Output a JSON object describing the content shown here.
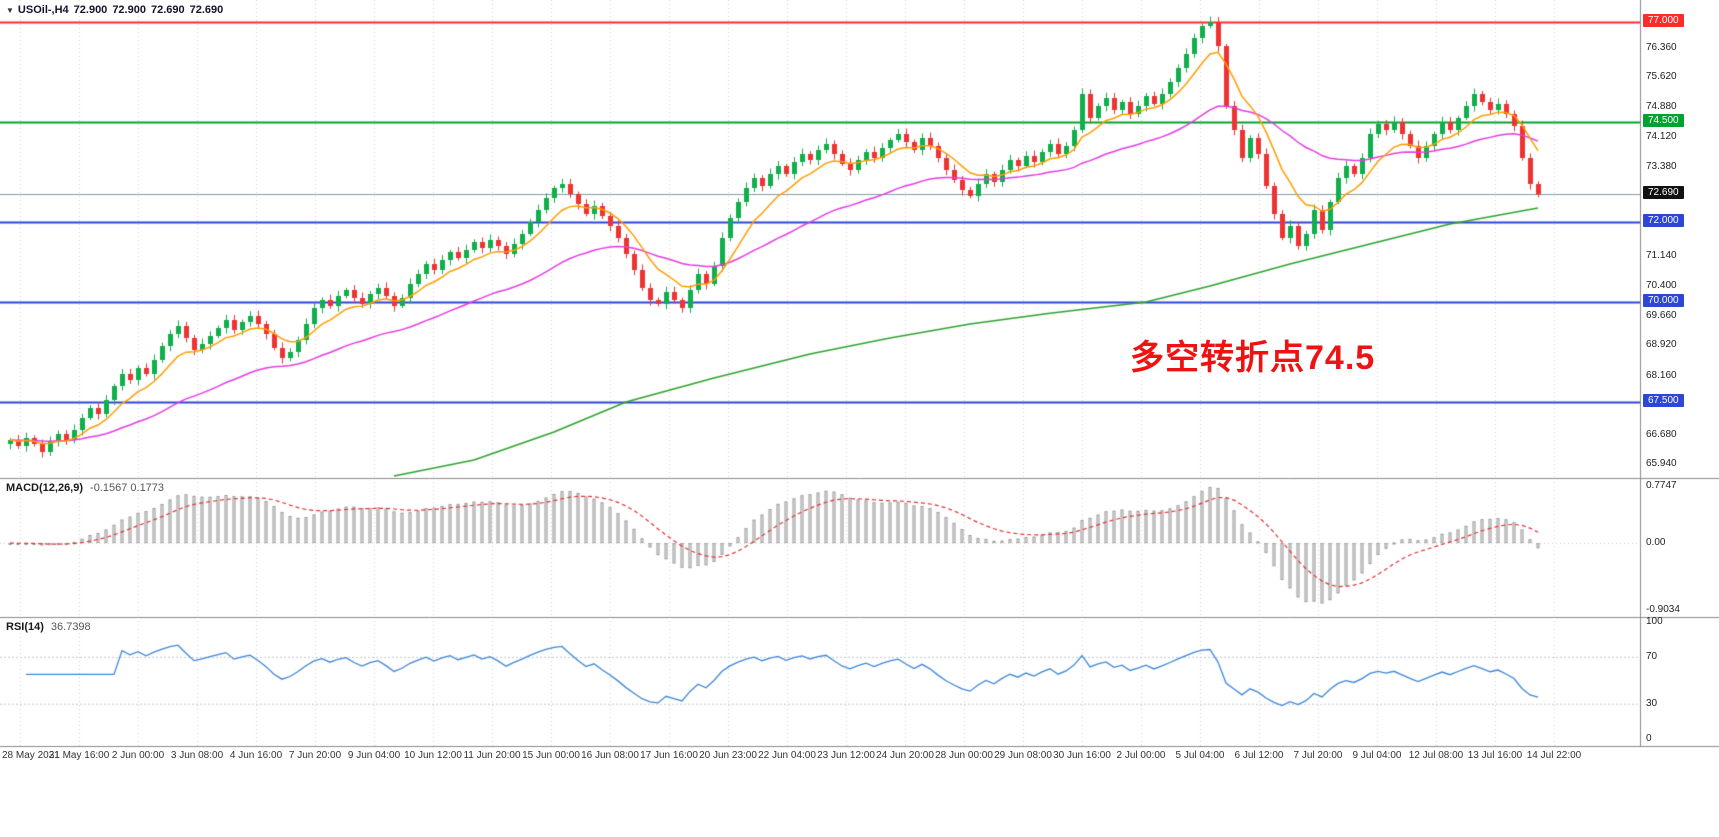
{
  "header": {
    "symbol": "USOil-,H4",
    "open": "72.900",
    "high": "72.900",
    "low": "72.690",
    "close": "72.690"
  },
  "annotation": {
    "text": "多空转折点74.5",
    "color": "#ef1212"
  },
  "indicators": {
    "macd_label": "MACD(12,26,9)",
    "macd_values": "-0.1567 0.1773",
    "rsi_label": "RSI(14)",
    "rsi_value": "36.7398"
  },
  "chart_data": {
    "type": "candlestick",
    "symbol": "USOil",
    "timeframe": "H4",
    "ylim_main": [
      65.6,
      77.55
    ],
    "grid": "vertical-dotted",
    "closes": [
      66.55,
      66.4,
      66.6,
      66.45,
      66.25,
      66.5,
      66.7,
      66.55,
      66.8,
      67.1,
      67.35,
      67.2,
      67.55,
      67.9,
      68.2,
      68.05,
      68.35,
      68.2,
      68.55,
      68.9,
      69.2,
      69.4,
      69.1,
      68.8,
      68.95,
      69.15,
      69.35,
      69.55,
      69.3,
      69.5,
      69.65,
      69.45,
      69.2,
      68.85,
      68.6,
      68.75,
      69.05,
      69.45,
      69.85,
      70.05,
      69.9,
      70.15,
      70.3,
      70.1,
      69.95,
      70.2,
      70.35,
      70.15,
      69.9,
      70.1,
      70.45,
      70.7,
      70.95,
      70.8,
      71.05,
      71.25,
      71.1,
      71.3,
      71.5,
      71.35,
      71.55,
      71.4,
      71.2,
      71.45,
      71.7,
      72.0,
      72.3,
      72.6,
      72.85,
      72.95,
      72.7,
      72.45,
      72.2,
      72.4,
      72.15,
      71.9,
      71.6,
      71.2,
      70.8,
      70.35,
      70.05,
      69.95,
      70.25,
      70.05,
      69.85,
      70.3,
      70.7,
      70.45,
      70.9,
      71.6,
      72.1,
      72.5,
      72.85,
      73.1,
      72.9,
      73.2,
      73.4,
      73.2,
      73.5,
      73.7,
      73.55,
      73.8,
      73.95,
      73.7,
      73.45,
      73.3,
      73.55,
      73.75,
      73.6,
      73.85,
      74.05,
      74.2,
      74.0,
      73.8,
      74.1,
      73.9,
      73.6,
      73.3,
      73.05,
      72.8,
      72.65,
      72.95,
      73.2,
      73.0,
      73.3,
      73.55,
      73.4,
      73.65,
      73.5,
      73.75,
      73.95,
      73.7,
      73.9,
      74.3,
      75.2,
      74.6,
      74.9,
      75.1,
      74.8,
      75.0,
      74.7,
      74.9,
      75.15,
      74.95,
      75.2,
      75.5,
      75.85,
      76.2,
      76.6,
      76.9,
      77.0,
      76.4,
      74.9,
      74.3,
      73.6,
      74.1,
      73.7,
      72.9,
      72.2,
      71.6,
      71.9,
      71.4,
      71.7,
      72.3,
      71.8,
      72.5,
      73.1,
      73.4,
      73.2,
      73.6,
      74.2,
      74.45,
      74.3,
      74.5,
      74.2,
      73.9,
      73.6,
      73.9,
      74.2,
      74.5,
      74.3,
      74.6,
      74.9,
      75.2,
      75.0,
      74.8,
      74.95,
      74.7,
      74.4,
      73.6,
      72.95,
      72.69
    ],
    "ma_green": [
      [
        48,
        65.65
      ],
      [
        58,
        66.05
      ],
      [
        68,
        66.75
      ],
      [
        77,
        67.5
      ],
      [
        88,
        68.1
      ],
      [
        100,
        68.7
      ],
      [
        110,
        69.1
      ],
      [
        120,
        69.45
      ],
      [
        130,
        69.72
      ],
      [
        142,
        70.0
      ],
      [
        150,
        70.4
      ],
      [
        160,
        70.95
      ],
      [
        170,
        71.45
      ],
      [
        180,
        71.95
      ],
      [
        191,
        72.35
      ]
    ],
    "ma_periods": {
      "fast": 8,
      "mid": 34
    },
    "hlines": [
      {
        "value": 77.0,
        "color": "#ff2b2b",
        "width": 2
      },
      {
        "value": 74.5,
        "color": "#00a32e",
        "width": 2
      },
      {
        "value": 72.69,
        "color": "#7f9dab",
        "width": 1
      },
      {
        "value": 72.0,
        "color": "#2b46d8",
        "width": 2
      },
      {
        "value": 70.0,
        "color": "#2b46d8",
        "width": 2
      },
      {
        "value": 67.5,
        "color": "#2b46d8",
        "width": 2
      }
    ],
    "price_axis": {
      "plain_labels": [
        76.36,
        75.62,
        74.88,
        74.12,
        73.38,
        71.14,
        70.4,
        69.66,
        68.92,
        68.16,
        66.68,
        65.94
      ],
      "boxed_labels": [
        {
          "text": "77.000",
          "value": 77.0,
          "bg": "#ff2b2b"
        },
        {
          "text": "74.500",
          "value": 74.5,
          "bg": "#00a32e"
        },
        {
          "text": "72.690",
          "value": 72.69,
          "bg": "#111111"
        },
        {
          "text": "72.000",
          "value": 72.0,
          "bg": "#2b46d8"
        },
        {
          "text": "70.000",
          "value": 70.0,
          "bg": "#2b46d8"
        },
        {
          "text": "67.500",
          "value": 67.5,
          "bg": "#2b46d8"
        }
      ]
    },
    "time_labels": [
      "28 May 2021",
      "31 May 16:00",
      "2 Jun 00:00",
      "3 Jun 08:00",
      "4 Jun 16:00",
      "7 Jun 20:00",
      "9 Jun 04:00",
      "10 Jun 12:00",
      "11 Jun 20:00",
      "15 Jun 00:00",
      "16 Jun 08:00",
      "17 Jun 16:00",
      "20 Jun 23:00",
      "22 Jun 04:00",
      "23 Jun 12:00",
      "24 Jun 20:00",
      "28 Jun 00:00",
      "29 Jun 08:00",
      "30 Jun 16:00",
      "2 Jul 00:00",
      "5 Jul 04:00",
      "6 Jul 12:00",
      "7 Jul 20:00",
      "9 Jul 04:00",
      "12 Jul 08:00",
      "13 Jul 16:00",
      "14 Jul 22:00"
    ],
    "macd_axis": {
      "labels": [
        "0.7747",
        "0.00",
        "-0.9034"
      ],
      "values": [
        0.7747,
        0,
        -0.9034
      ],
      "range": [
        -1.0,
        0.88
      ]
    },
    "rsi_axis": {
      "labels": [
        "100",
        "70",
        "30",
        "0"
      ],
      "values": [
        100,
        70,
        30,
        0
      ],
      "levels": [
        70,
        30
      ]
    },
    "colors": {
      "up": "#0faf4b",
      "down": "#ef3333",
      "ma_fast": "#ff9d00",
      "ma_mid": "#e43ce4",
      "ma_slow": "#2fa12f",
      "macd_hist_fill": "#ececec",
      "macd_hist_stroke": "#9c9c9c",
      "macd_signal": "#e33333",
      "rsi_line": "#3e86d8",
      "grid": "#d2d2d2",
      "separator": "#8a8a8a",
      "level_dotted": "#c2c8d0"
    }
  }
}
